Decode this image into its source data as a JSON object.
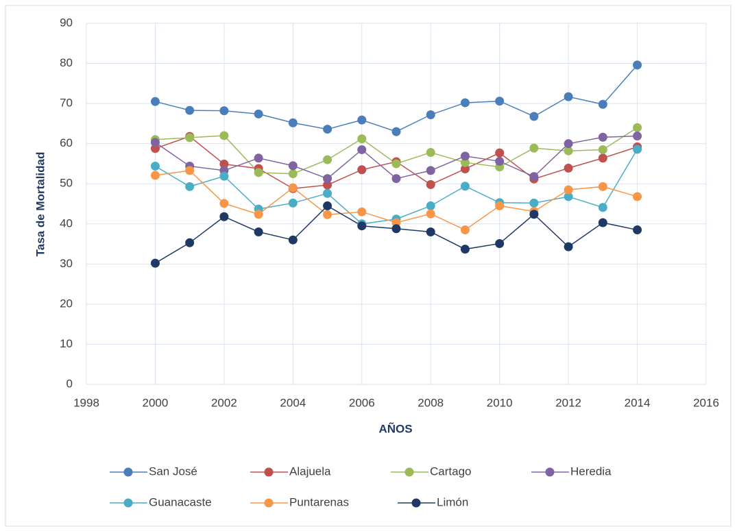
{
  "chart_data": {
    "type": "line",
    "x_label": "AÑOS",
    "y_label": "Tasa de Mortalidad",
    "x": [
      2000,
      2001,
      2002,
      2003,
      2004,
      2005,
      2006,
      2007,
      2008,
      2009,
      2010,
      2011,
      2012,
      2013,
      2014
    ],
    "series": [
      {
        "name": "San José",
        "color": "#4a7ebb",
        "values": [
          70.5,
          68.3,
          68.2,
          67.4,
          65.2,
          63.6,
          65.9,
          63.0,
          67.2,
          70.2,
          70.6,
          66.8,
          71.7,
          69.8,
          79.6
        ]
      },
      {
        "name": "Alajuela",
        "color": "#c0504d",
        "values": [
          58.8,
          61.8,
          54.9,
          53.8,
          48.8,
          49.7,
          53.5,
          55.5,
          49.8,
          53.7,
          57.7,
          51.2,
          53.9,
          56.4,
          59.2
        ]
      },
      {
        "name": "Cartago",
        "color": "#9bbb59",
        "values": [
          61.0,
          61.5,
          62.0,
          52.8,
          52.5,
          56.0,
          61.2,
          55.0,
          57.8,
          55.3,
          54.2,
          58.9,
          58.2,
          58.5,
          64.0
        ]
      },
      {
        "name": "Heredia",
        "color": "#8064a2",
        "values": [
          60.3,
          54.4,
          53.3,
          56.4,
          54.5,
          51.3,
          58.5,
          51.3,
          53.3,
          56.9,
          55.6,
          51.8,
          60.0,
          61.6,
          61.9
        ]
      },
      {
        "name": "Guanacaste",
        "color": "#4bacc6",
        "values": [
          54.4,
          49.3,
          51.9,
          43.7,
          45.2,
          47.6,
          40.0,
          41.2,
          44.5,
          49.4,
          45.3,
          45.2,
          46.8,
          44.1,
          58.6
        ]
      },
      {
        "name": "Puntarenas",
        "color": "#f79646",
        "values": [
          52.1,
          53.3,
          45.1,
          42.4,
          49.0,
          42.3,
          43.0,
          40.3,
          42.5,
          38.5,
          44.5,
          43.1,
          48.5,
          49.3,
          46.8
        ]
      },
      {
        "name": "Limón",
        "color": "#1f3864",
        "values": [
          30.2,
          35.3,
          41.8,
          38.0,
          36.0,
          44.5,
          39.5,
          38.8,
          38.0,
          33.7,
          35.1,
          42.4,
          34.3,
          40.3,
          38.5
        ]
      }
    ],
    "xlim": [
      1998,
      2016
    ],
    "xticks": [
      1998,
      2000,
      2002,
      2004,
      2006,
      2008,
      2010,
      2012,
      2014,
      2016
    ],
    "ylim": [
      0,
      90
    ],
    "yticks": [
      0,
      10,
      20,
      30,
      40,
      50,
      60,
      70,
      80,
      90
    ],
    "grid": true,
    "legend": "bottom"
  }
}
